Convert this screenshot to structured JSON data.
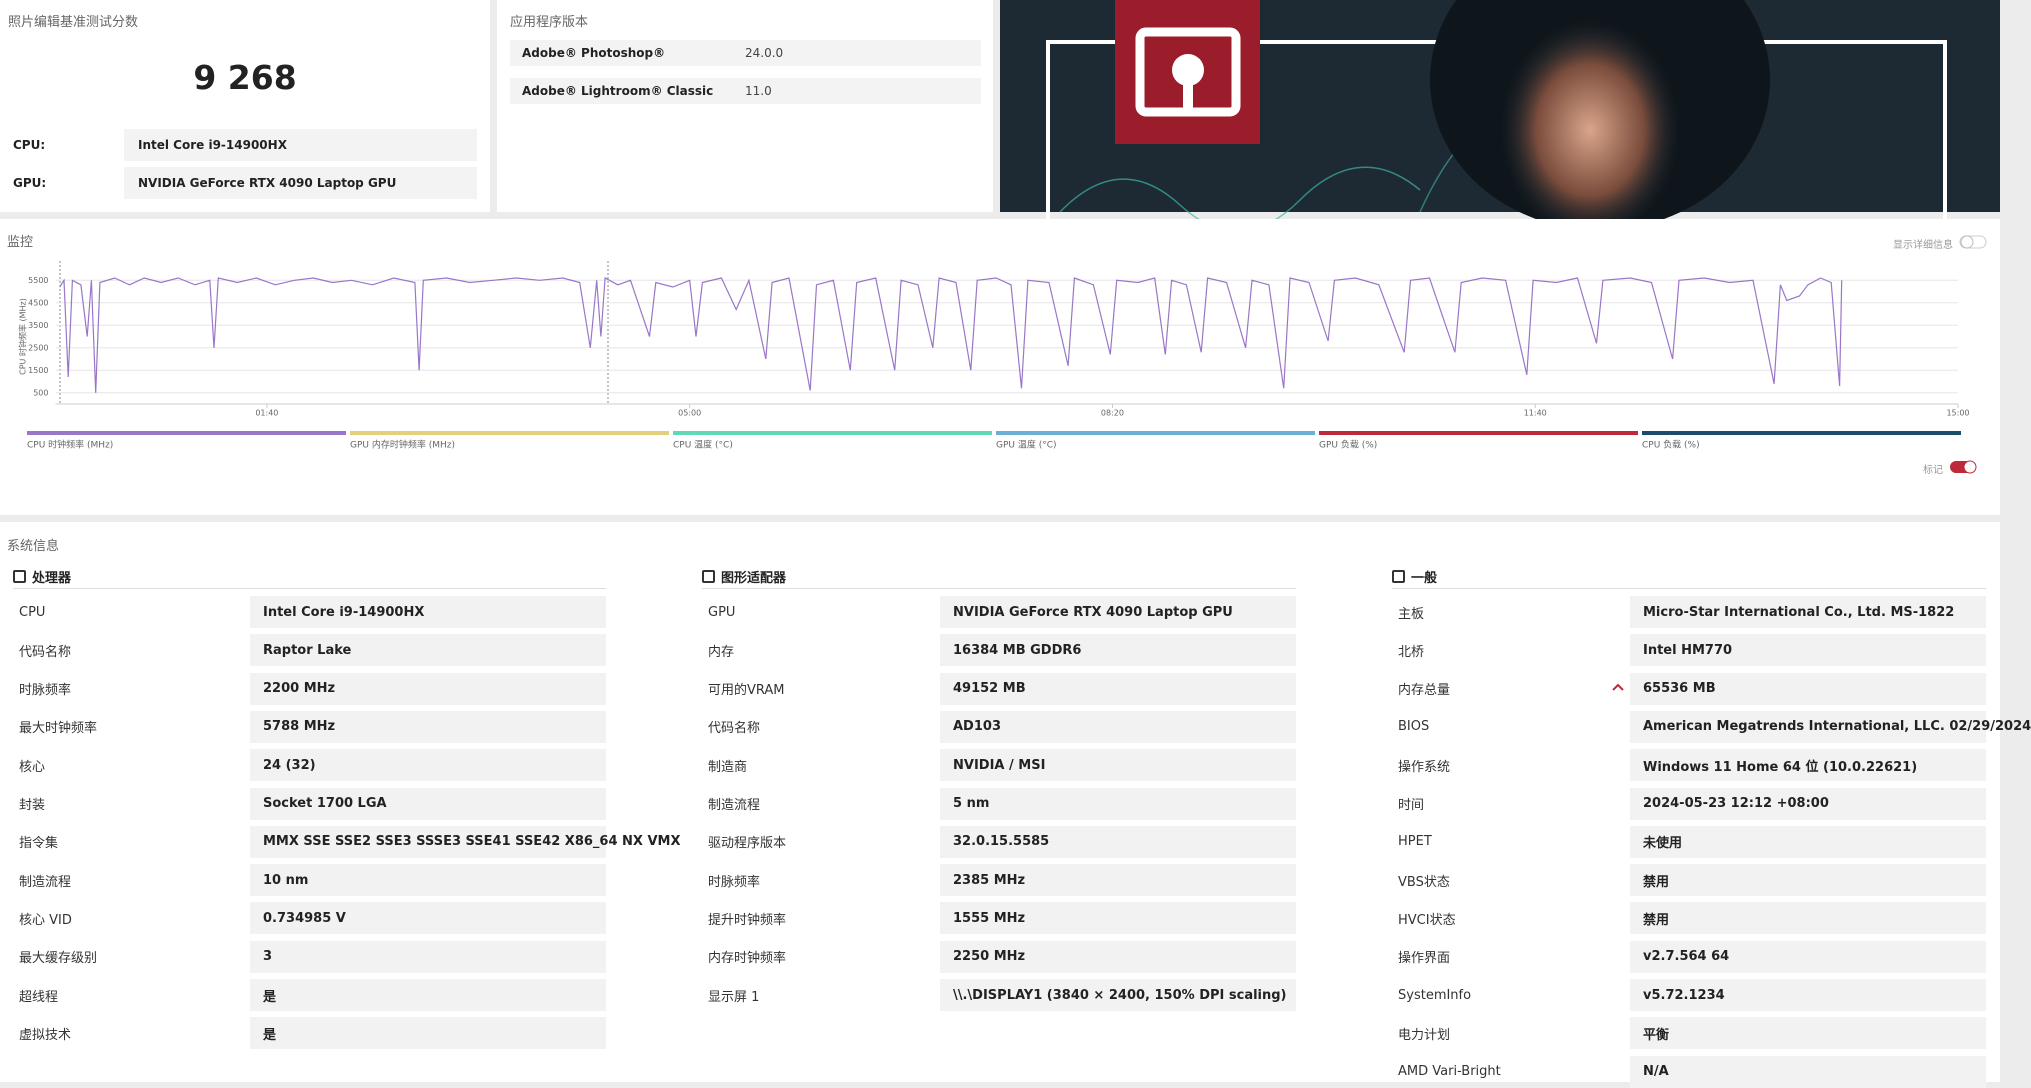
{
  "score_panel": {
    "title": "照片编辑基准测试分数",
    "score": "9 268",
    "rows": [
      {
        "label": "CPU:",
        "value": "Intel Core i9-14900HX"
      },
      {
        "label": "GPU:",
        "value": "NVIDIA GeForce RTX 4090 Laptop GPU"
      }
    ]
  },
  "app_panel": {
    "title": "应用程序版本",
    "rows": [
      {
        "label": "Adobe® Photoshop®",
        "value": "24.0.0"
      },
      {
        "label": "Adobe® Lightroom® Classic",
        "value": "11.0"
      }
    ]
  },
  "monitor": {
    "title": "监控",
    "toggle_label": "显示详细信息",
    "markers_label": "标记"
  },
  "chart_data": {
    "type": "line",
    "ylabel": "CPU 时钟频率 (MHz)",
    "xlim": [
      0,
      900
    ],
    "ylim": [
      0,
      6000
    ],
    "xticks": [
      {
        "value": 100,
        "label": "01:40"
      },
      {
        "value": 300,
        "label": "05:00"
      },
      {
        "value": 500,
        "label": "08:20"
      },
      {
        "value": 700,
        "label": "11:40"
      },
      {
        "value": 900,
        "label": "15:00"
      }
    ],
    "yticks": [
      500,
      1500,
      2500,
      3500,
      4500,
      5500
    ],
    "grid": true,
    "x": [
      2,
      4,
      6,
      8,
      12,
      15,
      17,
      19,
      21,
      28,
      35,
      42,
      50,
      58,
      66,
      73,
      75,
      77,
      86,
      95,
      104,
      113,
      122,
      131,
      140,
      150,
      160,
      170,
      172,
      174,
      185,
      196,
      207,
      218,
      229,
      240,
      248,
      253,
      256,
      258,
      260,
      266,
      272,
      281,
      284,
      292,
      300,
      303,
      306,
      315,
      322,
      328,
      336,
      339,
      347,
      357,
      360,
      368,
      376,
      379,
      388,
      397,
      400,
      408,
      415,
      418,
      426,
      433,
      436,
      445,
      452,
      457,
      460,
      470,
      479,
      482,
      491,
      499,
      502,
      512,
      520,
      525,
      528,
      535,
      542,
      545,
      554,
      563,
      566,
      574,
      581,
      584,
      593,
      602,
      605,
      615,
      626,
      638,
      641,
      650,
      662,
      665,
      675,
      686,
      696,
      699,
      710,
      720,
      729,
      732,
      745,
      755,
      765,
      768,
      780,
      792,
      803,
      813,
      816,
      819,
      825,
      829,
      835,
      840,
      844,
      845
    ],
    "series": [
      {
        "name": "CPU 时钟频率 (MHz)",
        "color": "#9a76c8",
        "values": [
          5200,
          5500,
          1200,
          5500,
          5300,
          3000,
          5500,
          500,
          5400,
          5600,
          5300,
          5600,
          5400,
          5600,
          5300,
          5500,
          2500,
          5600,
          5400,
          5600,
          5300,
          5500,
          5600,
          5400,
          5500,
          5300,
          5600,
          5400,
          1500,
          5500,
          5600,
          5400,
          5500,
          5600,
          5500,
          5600,
          5400,
          2500,
          5500,
          3000,
          5600,
          5300,
          5500,
          3000,
          5400,
          5200,
          5500,
          3000,
          5400,
          5600,
          4200,
          5500,
          2000,
          5400,
          5600,
          600,
          5300,
          5500,
          1500,
          5400,
          5600,
          1500,
          5500,
          5300,
          2500,
          5600,
          5400,
          1500,
          5500,
          5600,
          5300,
          700,
          5500,
          5400,
          1700,
          5600,
          5300,
          2200,
          5500,
          5400,
          5600,
          2200,
          5500,
          5300,
          2300,
          5600,
          5400,
          2500,
          5500,
          5300,
          700,
          5600,
          5400,
          2800,
          5500,
          5600,
          5300,
          2300,
          5500,
          5600,
          2300,
          5400,
          5600,
          5500,
          1300,
          5500,
          5400,
          5600,
          2700,
          5500,
          5600,
          5400,
          2000,
          5500,
          5600,
          5400,
          5500,
          900,
          5300,
          4600,
          4800,
          5300,
          5600,
          5400,
          800,
          5500
        ]
      }
    ],
    "other_channels": [
      {
        "name": "GPU 内存时钟频率 (MHz)",
        "color": "#e3d07e"
      },
      {
        "name": "CPU 温度 (°C)",
        "color": "#62d9b6"
      },
      {
        "name": "GPU 温度 (°C)",
        "color": "#6cb0d8"
      },
      {
        "name": "GPU 负载 (%)",
        "color": "#c0283b"
      },
      {
        "name": "CPU 负载 (%)",
        "color": "#1c4b6d"
      }
    ]
  },
  "sysinfo": {
    "title": "系统信息",
    "sections": [
      {
        "heading": "处理器",
        "rows": [
          {
            "label": "CPU",
            "value": "Intel Core i9-14900HX"
          },
          {
            "label": "代码名称",
            "value": "Raptor Lake"
          },
          {
            "label": "时脉频率",
            "value": "2200 MHz"
          },
          {
            "label": "最大时钟频率",
            "value": "5788 MHz"
          },
          {
            "label": "核心",
            "value": "24 (32)"
          },
          {
            "label": "封装",
            "value": "Socket 1700 LGA"
          },
          {
            "label": "指令集",
            "value": "MMX SSE SSE2 SSE3 SSSE3 SSE41 SSE42 X86_64 NX VMX"
          },
          {
            "label": "制造流程",
            "value": "10 nm"
          },
          {
            "label": "核心 VID",
            "value": "0.734985 V"
          },
          {
            "label": "最大缓存级别",
            "value": "3"
          },
          {
            "label": "超线程",
            "value": "是"
          },
          {
            "label": "虚拟技术",
            "value": "是"
          }
        ]
      },
      {
        "heading": "图形适配器",
        "rows": [
          {
            "label": "GPU",
            "value": "NVIDIA GeForce RTX 4090 Laptop GPU"
          },
          {
            "label": "内存",
            "value": "16384 MB GDDR6"
          },
          {
            "label": "可用的VRAM",
            "value": "49152 MB"
          },
          {
            "label": "代码名称",
            "value": "AD103"
          },
          {
            "label": "制造商",
            "value": "NVIDIA / MSI"
          },
          {
            "label": "制造流程",
            "value": "5 nm"
          },
          {
            "label": "驱动程序版本",
            "value": "32.0.15.5585"
          },
          {
            "label": "时脉频率",
            "value": "2385 MHz"
          },
          {
            "label": "提升时钟频率",
            "value": "1555 MHz"
          },
          {
            "label": "内存时钟频率",
            "value": "2250 MHz"
          },
          {
            "label": "显示屏 1",
            "value": "\\\\.\\DISPLAY1 (3840 × 2400, 150% DPI scaling)"
          }
        ]
      },
      {
        "heading": "一般",
        "rows": [
          {
            "label": "主板",
            "value": "Micro-Star International Co., Ltd. MS-1822"
          },
          {
            "label": "北桥",
            "value": "Intel HM770"
          },
          {
            "label": "内存总量",
            "value": "65536 MB"
          },
          {
            "label": "BIOS",
            "value": "American Megatrends International, LLC. 02/29/2024"
          },
          {
            "label": "操作系统",
            "value": "Windows 11 Home 64 位 (10.0.22621)"
          },
          {
            "label": "时间",
            "value": "2024-05-23 12:12 +08:00"
          },
          {
            "label": "HPET",
            "value": "未使用"
          },
          {
            "label": "VBS状态",
            "value": "禁用"
          },
          {
            "label": "HVCI状态",
            "value": "禁用"
          },
          {
            "label": "操作界面",
            "value": "v2.7.564 64"
          },
          {
            "label": "SystemInfo",
            "value": "v5.72.1234"
          },
          {
            "label": "电力计划",
            "value": "平衡"
          },
          {
            "label": "AMD Vari-Bright",
            "value": "N/A"
          }
        ]
      }
    ]
  }
}
